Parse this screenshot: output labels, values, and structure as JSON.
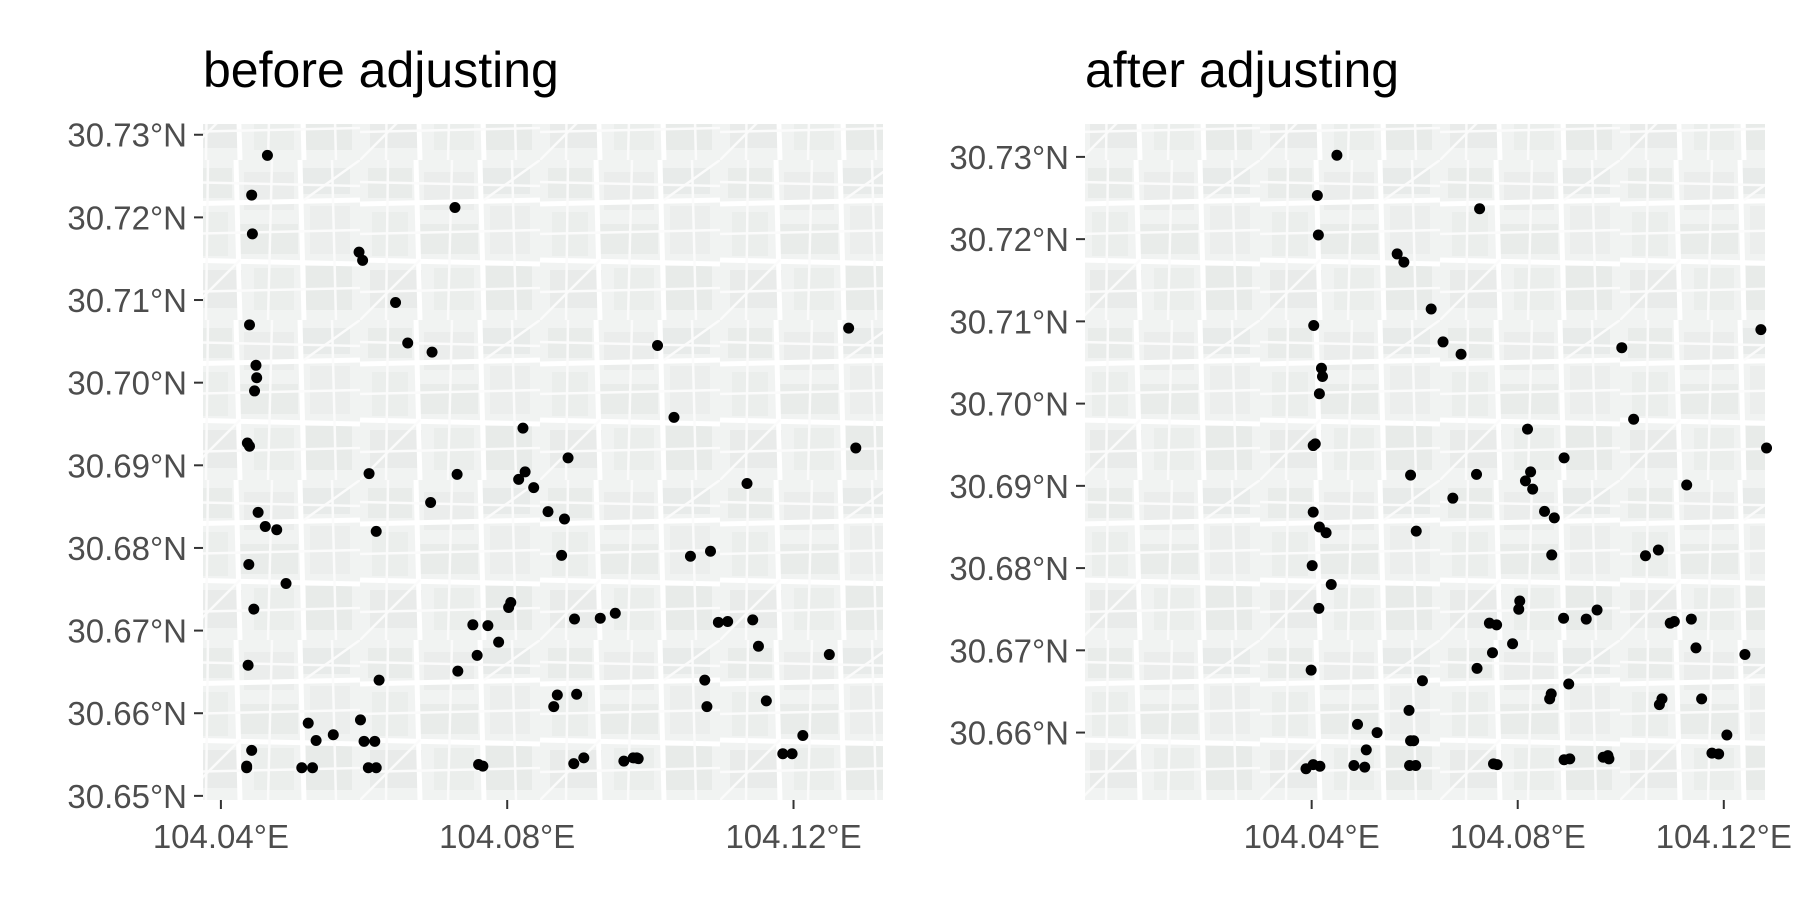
{
  "chart_data": [
    {
      "type": "scatter",
      "title": "before adjusting",
      "xlabel": "",
      "ylabel": "",
      "xlim": [
        104.0375,
        104.1325
      ],
      "ylim": [
        30.6495,
        30.7313
      ],
      "x_ticks": [
        104.04,
        104.08,
        104.12
      ],
      "x_tick_labels": [
        "104.04°E",
        "104.08°E",
        "104.12°E"
      ],
      "y_ticks": [
        30.65,
        30.66,
        30.67,
        30.68,
        30.69,
        30.7,
        30.71,
        30.72,
        30.73
      ],
      "y_tick_labels": [
        "30.65°N",
        "30.66°N",
        "30.67°N",
        "30.68°N",
        "30.69°N",
        "30.70°N",
        "30.71°N",
        "30.72°N",
        "30.73°N"
      ],
      "grid": false,
      "background": "street basemap",
      "series": [
        {
          "x": [
            104.0465,
            104.0443,
            104.0444,
            104.044,
            104.0449,
            104.045,
            104.0447,
            104.0437,
            104.044,
            104.0452,
            104.0462,
            104.0478,
            104.0439,
            104.0491,
            104.0446,
            104.0438,
            104.0522,
            104.0533,
            104.0443,
            104.0436,
            104.0436,
            104.0528,
            104.0513,
            104.0557,
            104.0595,
            104.06,
            104.0617,
            104.0606,
            104.0615,
            104.0621,
            104.0617,
            104.0607,
            104.0593,
            104.0598,
            104.0644,
            104.0661,
            104.0695,
            104.0727,
            104.073,
            104.0693,
            104.0731,
            104.076,
            104.0766,
            104.0758,
            104.0752,
            104.0788,
            104.0773,
            104.0802,
            104.0805,
            104.0816,
            104.0825,
            104.0822,
            104.0837,
            104.0857,
            104.0865,
            104.087,
            104.0885,
            104.088,
            104.0876,
            104.0894,
            104.0897,
            104.0893,
            104.0907,
            104.093,
            104.0951,
            104.0963,
            104.0976,
            104.0983,
            104.0981,
            104.101,
            104.1033,
            104.1056,
            104.1084,
            104.1079,
            104.1076,
            104.1095,
            104.1108,
            104.1135,
            104.1143,
            104.1151,
            104.1162,
            104.1185,
            104.1198,
            104.1213,
            104.125,
            104.1277,
            104.1287
          ],
          "y": [
            30.7275,
            30.7227,
            30.718,
            30.707,
            30.7021,
            30.7006,
            30.699,
            30.6927,
            30.6923,
            30.6843,
            30.6826,
            30.6822,
            30.678,
            30.6757,
            30.6726,
            30.6658,
            30.6588,
            30.6567,
            30.6555,
            30.6534,
            30.6536,
            30.6534,
            30.6534,
            30.6574,
            30.6592,
            30.6566,
            30.6534,
            30.6534,
            30.6566,
            30.664,
            30.682,
            30.689,
            30.7158,
            30.7148,
            30.7097,
            30.7048,
            30.7037,
            30.7212,
            30.6889,
            30.6855,
            30.6651,
            30.6538,
            30.6536,
            30.667,
            30.6707,
            30.6686,
            30.6706,
            30.6728,
            30.6734,
            30.6883,
            30.6892,
            30.6945,
            30.6873,
            30.6844,
            30.6608,
            30.6622,
            30.6909,
            30.6835,
            30.6791,
            30.6714,
            30.6623,
            30.6539,
            30.6546,
            30.6715,
            30.6721,
            30.6542,
            30.6546,
            30.6545,
            30.6546,
            30.7045,
            30.6958,
            30.679,
            30.6796,
            30.6608,
            30.664,
            30.671,
            30.6711,
            30.6878,
            30.6713,
            30.6681,
            30.6615,
            30.6551,
            30.6551,
            30.6573,
            30.6671,
            30.7066,
            30.6921
          ]
        }
      ]
    },
    {
      "type": "scatter",
      "title": "after adjusting",
      "xlabel": "",
      "ylabel": "",
      "xlim": [
        103.996,
        104.128
      ],
      "ylim": [
        30.6518,
        30.734
      ],
      "x_ticks": [
        104.04,
        104.08,
        104.12
      ],
      "x_tick_labels": [
        "104.04°E",
        "104.08°E",
        "104.12°E"
      ],
      "y_ticks": [
        30.66,
        30.67,
        30.68,
        30.69,
        30.7,
        30.71,
        30.72,
        30.73
      ],
      "y_tick_labels": [
        "30.66°N",
        "30.67°N",
        "30.68°N",
        "30.69°N",
        "30.70°N",
        "30.71°N",
        "30.72°N",
        "30.73°N"
      ],
      "grid": false,
      "background": "street basemap",
      "series": [
        {
          "x": [
            104.0449,
            104.0411,
            104.0413,
            104.0404,
            104.0419,
            104.0421,
            104.0415,
            104.0407,
            104.0403,
            104.0403,
            104.0415,
            104.0428,
            104.0401,
            104.0438,
            104.0414,
            104.0399,
            104.0489,
            104.0506,
            104.0416,
            104.0389,
            104.0403,
            104.0503,
            104.0482,
            104.0527,
            104.0589,
            104.0592,
            104.0602,
            104.059,
            104.0598,
            104.0615,
            104.0603,
            104.0592,
            104.0566,
            104.0579,
            104.0632,
            104.0655,
            104.069,
            104.0726,
            104.072,
            104.0674,
            104.0721,
            104.0753,
            104.076,
            104.0751,
            104.0745,
            104.079,
            104.0759,
            104.0802,
            104.0804,
            104.0815,
            104.0825,
            104.0819,
            104.0829,
            104.0852,
            104.0862,
            104.0865,
            104.089,
            104.0871,
            104.0866,
            104.0889,
            104.0899,
            104.089,
            104.0901,
            104.0933,
            104.0954,
            104.0966,
            104.0975,
            104.0977,
            104.0975,
            104.1002,
            104.1025,
            104.1048,
            104.1073,
            104.108,
            104.1075,
            104.1096,
            104.1104,
            104.1128,
            104.1137,
            104.1146,
            104.1157,
            104.1177,
            104.119,
            104.1206,
            104.1241,
            104.1272,
            104.1283
          ],
          "y": [
            30.7302,
            30.7253,
            30.7205,
            30.7095,
            30.7043,
            30.7033,
            30.7012,
            30.6951,
            30.6949,
            30.6868,
            30.685,
            30.6843,
            30.6803,
            30.678,
            30.6751,
            30.6676,
            30.661,
            30.6579,
            30.6559,
            30.6556,
            30.6561,
            30.6558,
            30.656,
            30.66,
            30.6627,
            30.659,
            30.656,
            30.656,
            30.659,
            30.6663,
            30.6845,
            30.6913,
            30.7182,
            30.7172,
            30.7115,
            30.7075,
            30.706,
            30.7237,
            30.6914,
            30.6885,
            30.6678,
            30.6562,
            30.6561,
            30.6697,
            30.6733,
            30.6708,
            30.6731,
            30.675,
            30.676,
            30.6906,
            30.6917,
            30.6969,
            30.6896,
            30.6869,
            30.6641,
            30.6647,
            30.6934,
            30.6861,
            30.6816,
            30.6739,
            30.6659,
            30.6567,
            30.6568,
            30.6738,
            30.6749,
            30.657,
            30.6571,
            30.6568,
            30.6572,
            30.7068,
            30.6981,
            30.6815,
            30.6822,
            30.6641,
            30.6634,
            30.6733,
            30.6735,
            30.6901,
            30.6738,
            30.6703,
            30.6641,
            30.6575,
            30.6574,
            30.6597,
            30.6695,
            30.709,
            30.6946
          ]
        }
      ]
    }
  ]
}
